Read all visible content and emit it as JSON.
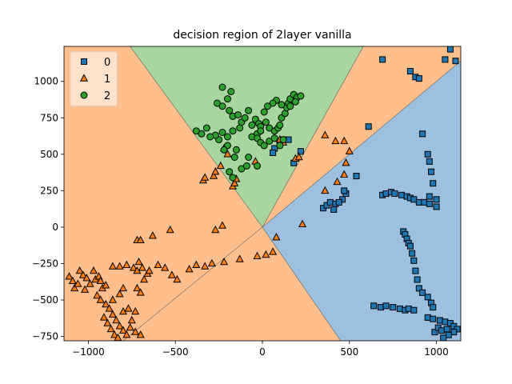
{
  "chart_data": {
    "type": "scatter",
    "title": "decision region of 2layer vanilla",
    "xlabel": "",
    "ylabel": "",
    "xlim": [
      -1140,
      1140
    ],
    "ylim": [
      -780,
      1240
    ],
    "x_ticks": [
      -1000,
      -500,
      0,
      500,
      1000
    ],
    "y_ticks": [
      -750,
      -500,
      -250,
      0,
      250,
      500,
      750,
      1000
    ],
    "x_tick_labels": [
      "−1000",
      "−500",
      "0",
      "500",
      "1000"
    ],
    "y_tick_labels": [
      "−750",
      "−500",
      "−250",
      "0",
      "250",
      "500",
      "750",
      "1000"
    ],
    "legend": {
      "placement": "top-left",
      "entries": [
        {
          "label": "0",
          "marker": "square",
          "color": "#1f77b4"
        },
        {
          "label": "1",
          "marker": "triangle",
          "color": "#ff7f0e"
        },
        {
          "label": "2",
          "marker": "circle",
          "color": "#2ca02c"
        }
      ]
    },
    "regions": [
      {
        "class": "1",
        "color": "#ffbf8c",
        "polygon": [
          [
            -1140,
            1240
          ],
          [
            -760,
            1240
          ],
          [
            0,
            0
          ],
          [
            -800,
            -780
          ],
          [
            -1140,
            -780
          ]
        ]
      },
      {
        "class": "2",
        "color": "#a8d5a0",
        "polygon": [
          [
            -760,
            1240
          ],
          [
            580,
            1240
          ],
          [
            0,
            0
          ]
        ]
      },
      {
        "class": "1",
        "color": "#ffbf8c",
        "polygon": [
          [
            580,
            1240
          ],
          [
            1140,
            1240
          ],
          [
            1140,
            1140
          ],
          [
            0,
            0
          ]
        ]
      },
      {
        "class": "1",
        "color": "#ffbf8c",
        "polygon": [
          [
            0,
            0
          ],
          [
            -800,
            -780
          ],
          [
            450,
            -780
          ]
        ]
      },
      {
        "class": "0",
        "color": "#9cc0de",
        "polygon": [
          [
            0,
            0
          ],
          [
            1140,
            1140
          ],
          [
            1140,
            -780
          ],
          [
            450,
            -780
          ]
        ]
      }
    ],
    "series": [
      {
        "name": "0",
        "marker": "square",
        "color": "#1f77b4",
        "points": [
          [
            690,
            1150
          ],
          [
            850,
            1070
          ],
          [
            880,
            1030
          ],
          [
            900,
            1020
          ],
          [
            1050,
            1150
          ],
          [
            1080,
            1220
          ],
          [
            1110,
            1140
          ],
          [
            610,
            690
          ],
          [
            920,
            640
          ],
          [
            950,
            500
          ],
          [
            960,
            450
          ],
          [
            970,
            380
          ],
          [
            980,
            300
          ],
          [
            960,
            210
          ],
          [
            1000,
            190
          ],
          [
            100,
            580
          ],
          [
            120,
            600
          ],
          [
            150,
            600
          ],
          [
            70,
            540
          ],
          [
            60,
            510
          ],
          [
            180,
            440
          ],
          [
            220,
            520
          ],
          [
            350,
            130
          ],
          [
            370,
            150
          ],
          [
            390,
            170
          ],
          [
            420,
            160
          ],
          [
            460,
            190
          ],
          [
            480,
            230
          ],
          [
            440,
            170
          ],
          [
            410,
            120
          ],
          [
            470,
            250
          ],
          [
            540,
            350
          ],
          [
            690,
            220
          ],
          [
            710,
            230
          ],
          [
            740,
            240
          ],
          [
            760,
            230
          ],
          [
            800,
            220
          ],
          [
            830,
            210
          ],
          [
            850,
            200
          ],
          [
            870,
            190
          ],
          [
            900,
            170
          ],
          [
            930,
            170
          ],
          [
            960,
            160
          ],
          [
            1000,
            140
          ],
          [
            810,
            -30
          ],
          [
            820,
            -50
          ],
          [
            830,
            -80
          ],
          [
            840,
            -110
          ],
          [
            850,
            -130
          ],
          [
            860,
            -180
          ],
          [
            870,
            -230
          ],
          [
            880,
            -300
          ],
          [
            890,
            -360
          ],
          [
            900,
            -420
          ],
          [
            920,
            -450
          ],
          [
            950,
            -480
          ],
          [
            970,
            -520
          ],
          [
            980,
            -550
          ],
          [
            640,
            -540
          ],
          [
            680,
            -550
          ],
          [
            710,
            -540
          ],
          [
            750,
            -550
          ],
          [
            790,
            -560
          ],
          [
            820,
            -570
          ],
          [
            840,
            -560
          ],
          [
            870,
            -570
          ],
          [
            950,
            -620
          ],
          [
            980,
            -630
          ],
          [
            1020,
            -640
          ],
          [
            1050,
            -650
          ],
          [
            1080,
            -660
          ],
          [
            1100,
            -680
          ],
          [
            1120,
            -700
          ],
          [
            1100,
            -720
          ],
          [
            1070,
            -740
          ],
          [
            1040,
            -760
          ],
          [
            990,
            -720
          ],
          [
            1010,
            -690
          ],
          [
            1030,
            -710
          ],
          [
            1060,
            -700
          ]
        ]
      },
      {
        "name": "1",
        "marker": "triangle",
        "color": "#ff7f0e",
        "points": [
          [
            -1110,
            -340
          ],
          [
            -1090,
            -370
          ],
          [
            -1080,
            -420
          ],
          [
            -1060,
            -390
          ],
          [
            -1050,
            -300
          ],
          [
            -1030,
            -330
          ],
          [
            -1020,
            -430
          ],
          [
            -1010,
            -350
          ],
          [
            -990,
            -390
          ],
          [
            -970,
            -300
          ],
          [
            -960,
            -360
          ],
          [
            -940,
            -340
          ],
          [
            -930,
            -370
          ],
          [
            -920,
            -420
          ],
          [
            -900,
            -400
          ],
          [
            -950,
            -470
          ],
          [
            -930,
            -500
          ],
          [
            -900,
            -530
          ],
          [
            -880,
            -560
          ],
          [
            -860,
            -600
          ],
          [
            -840,
            -640
          ],
          [
            -820,
            -680
          ],
          [
            -800,
            -710
          ],
          [
            -780,
            -740
          ],
          [
            -910,
            -620
          ],
          [
            -890,
            -660
          ],
          [
            -870,
            -700
          ],
          [
            -850,
            -740
          ],
          [
            -830,
            -760
          ],
          [
            -760,
            -690
          ],
          [
            -730,
            -720
          ],
          [
            -700,
            -740
          ],
          [
            -750,
            -640
          ],
          [
            -800,
            -580
          ],
          [
            -770,
            -560
          ],
          [
            -730,
            -580
          ],
          [
            -860,
            -500
          ],
          [
            -820,
            -460
          ],
          [
            -800,
            -420
          ],
          [
            -860,
            -270
          ],
          [
            -820,
            -270
          ],
          [
            -780,
            -260
          ],
          [
            -740,
            -280
          ],
          [
            -720,
            -300
          ],
          [
            -710,
            -240
          ],
          [
            -690,
            -280
          ],
          [
            -660,
            -320
          ],
          [
            -720,
            -420
          ],
          [
            -700,
            -450
          ],
          [
            -680,
            -360
          ],
          [
            -650,
            -300
          ],
          [
            -600,
            -260
          ],
          [
            -560,
            -280
          ],
          [
            -520,
            -330
          ],
          [
            -490,
            -360
          ],
          [
            -420,
            -290
          ],
          [
            -380,
            -260
          ],
          [
            -330,
            -270
          ],
          [
            -290,
            -250
          ],
          [
            -220,
            -240
          ],
          [
            -130,
            -220
          ],
          [
            -30,
            -200
          ],
          [
            20,
            -190
          ],
          [
            60,
            -170
          ],
          [
            -720,
            -90
          ],
          [
            -700,
            -90
          ],
          [
            -630,
            -60
          ],
          [
            -530,
            -20
          ],
          [
            -270,
            -20
          ],
          [
            -230,
            10
          ],
          [
            -340,
            320
          ],
          [
            -330,
            340
          ],
          [
            -280,
            350
          ],
          [
            -270,
            380
          ],
          [
            -240,
            420
          ],
          [
            -200,
            500
          ],
          [
            -220,
            540
          ],
          [
            -170,
            280
          ],
          [
            -160,
            300
          ],
          [
            -150,
            330
          ],
          [
            -40,
            450
          ],
          [
            100,
            600
          ],
          [
            120,
            580
          ],
          [
            190,
            470
          ],
          [
            210,
            480
          ],
          [
            80,
            -70
          ],
          [
            230,
            20
          ],
          [
            360,
            250
          ],
          [
            430,
            310
          ],
          [
            470,
            360
          ],
          [
            480,
            440
          ],
          [
            500,
            520
          ],
          [
            470,
            590
          ],
          [
            420,
            590
          ],
          [
            360,
            630
          ]
        ]
      },
      {
        "name": "2",
        "marker": "circle",
        "color": "#2ca02c",
        "points": [
          [
            -230,
            960
          ],
          [
            -180,
            930
          ],
          [
            -200,
            880
          ],
          [
            -230,
            830
          ],
          [
            -260,
            850
          ],
          [
            -190,
            800
          ],
          [
            -170,
            760
          ],
          [
            -140,
            770
          ],
          [
            -120,
            720
          ],
          [
            -100,
            750
          ],
          [
            -80,
            800
          ],
          [
            -60,
            700
          ],
          [
            -40,
            740
          ],
          [
            -20,
            710
          ],
          [
            -130,
            680
          ],
          [
            -170,
            660
          ],
          [
            -200,
            620
          ],
          [
            -230,
            650
          ],
          [
            -250,
            600
          ],
          [
            -270,
            630
          ],
          [
            -300,
            620
          ],
          [
            -320,
            680
          ],
          [
            -350,
            640
          ],
          [
            -380,
            660
          ],
          [
            -200,
            560
          ],
          [
            -220,
            530
          ],
          [
            -150,
            530
          ],
          [
            -80,
            480
          ],
          [
            -60,
            620
          ],
          [
            -30,
            640
          ],
          [
            -10,
            690
          ],
          [
            20,
            720
          ],
          [
            40,
            680
          ],
          [
            70,
            660
          ],
          [
            90,
            680
          ],
          [
            100,
            700
          ],
          [
            110,
            750
          ],
          [
            130,
            780
          ],
          [
            140,
            820
          ],
          [
            150,
            850
          ],
          [
            160,
            880
          ],
          [
            180,
            910
          ],
          [
            200,
            890
          ],
          [
            220,
            900
          ],
          [
            190,
            860
          ],
          [
            160,
            830
          ],
          [
            110,
            840
          ],
          [
            80,
            870
          ],
          [
            60,
            850
          ],
          [
            30,
            830
          ],
          [
            10,
            790
          ],
          [
            -10,
            660
          ],
          [
            -30,
            610
          ],
          [
            -10,
            580
          ],
          [
            10,
            560
          ],
          [
            40,
            590
          ],
          [
            70,
            610
          ],
          [
            100,
            560
          ],
          [
            120,
            600
          ],
          [
            -120,
            400
          ],
          [
            -90,
            420
          ],
          [
            -30,
            420
          ],
          [
            -170,
            340
          ],
          [
            -190,
            380
          ],
          [
            -160,
            480
          ]
        ]
      }
    ]
  }
}
